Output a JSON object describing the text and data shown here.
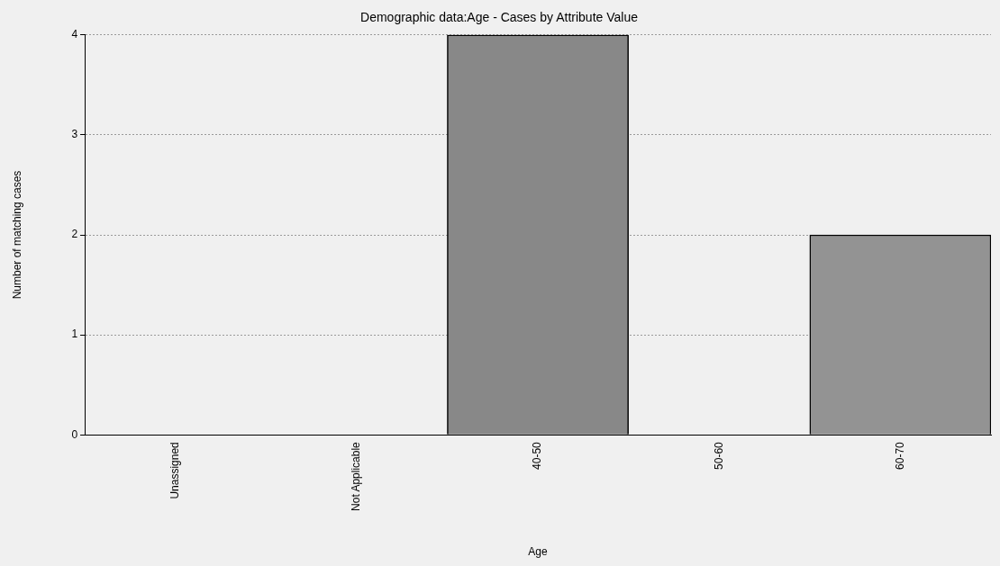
{
  "chart_data": {
    "type": "bar",
    "title": "Demographic data:Age - Cases by Attribute Value",
    "xlabel": "Age",
    "ylabel": "Number of matching cases",
    "categories": [
      "Unassigned",
      "Not Applicable",
      "40-50",
      "50-60",
      "60-70"
    ],
    "values": [
      0,
      0,
      4,
      0,
      2
    ],
    "colors": [
      "#888888",
      "#888888",
      "#888888",
      "#888888",
      "#939393"
    ],
    "ylim": [
      0,
      4
    ],
    "yticks": [
      0,
      1,
      2,
      3,
      4
    ],
    "grid": "y",
    "legend": false
  }
}
